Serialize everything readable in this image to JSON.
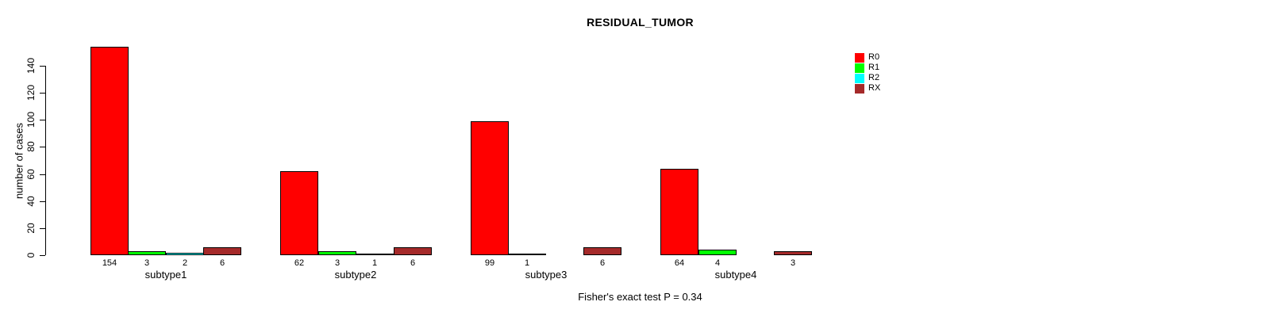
{
  "chart_data": {
    "type": "bar",
    "title": "RESIDUAL_TUMOR",
    "ylabel": "number of cases",
    "xlabel": "",
    "caption": "Fisher's exact test P = 0.34",
    "categories": [
      "subtype1",
      "subtype2",
      "subtype3",
      "subtype4"
    ],
    "series": [
      {
        "name": "R0",
        "color": "#FF0000",
        "values": [
          154,
          62,
          99,
          64
        ]
      },
      {
        "name": "R1",
        "color": "#00FF00",
        "values": [
          3,
          3,
          1,
          4
        ]
      },
      {
        "name": "R2",
        "color": "#00FFFF",
        "values": [
          2,
          1,
          0,
          0
        ]
      },
      {
        "name": "RX",
        "color": "#A52A2A",
        "values": [
          6,
          6,
          6,
          3
        ]
      }
    ],
    "bar_value_labels": [
      [
        "154",
        "3",
        "2",
        "6"
      ],
      [
        "62",
        "3",
        "1",
        "6"
      ],
      [
        "99",
        "1",
        "",
        "6"
      ],
      [
        "64",
        "4",
        "",
        "3"
      ]
    ],
    "yticks": [
      0,
      20,
      40,
      60,
      80,
      100,
      120,
      140
    ],
    "ylim": [
      0,
      157
    ],
    "grid": false,
    "legend_position": "top-right",
    "legend_entries": [
      "R0",
      "R1",
      "R2",
      "RX"
    ],
    "background_color": "#FFFFFF",
    "axis_color": "#000000"
  }
}
